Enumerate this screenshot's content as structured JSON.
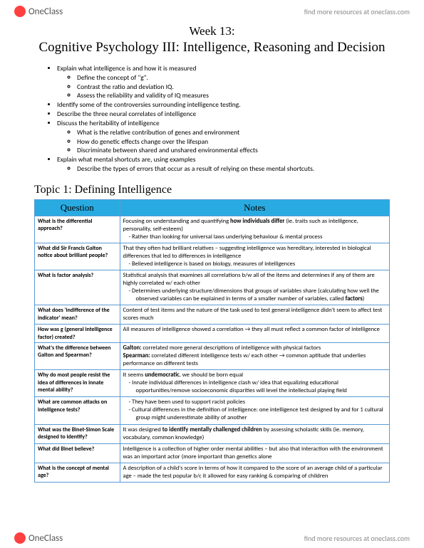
{
  "brand": {
    "name": "OneClass",
    "tagline": "find more resources at oneclass.com"
  },
  "title_line1": "Week 13:",
  "title_line2": "Cognitive Psychology III: Intelligence, Reasoning and Decision",
  "outline": [
    {
      "text": "Explain what intelligence is and how it is measured",
      "children": [
        "Define the concept of \"g\".",
        "Contrast the ratio and deviation IQ.",
        "Assess the reliability and validity of IQ measures"
      ]
    },
    {
      "text": "Identify some of the controversies surrounding intelligence testing."
    },
    {
      "text": "Describe the three neural correlates of intelligence"
    },
    {
      "text": "Discuss the heritability of intelligence",
      "children": [
        "What is the relative contribution of genes and environment",
        "How do genetic effects change over the lifespan",
        "Discriminate between shared and unshared environmental effects"
      ]
    },
    {
      "text": "Explain what mental shortcuts are, using examples",
      "children": [
        "Describe the types of errors that occur as a result of relying on these mental shortcuts."
      ]
    }
  ],
  "topic_heading": "Topic 1: Defining Intelligence",
  "table": {
    "headers": [
      "Question",
      "Notes"
    ],
    "header_bg": "#29abe2",
    "border_color": "#5b9bd5",
    "rows": [
      {
        "q": "What is the differential approach?",
        "n": [
          "Focusing on understanding and quantifying <b>how individuals differ</b> (ie. traits such as intelligence, personality, self-esteem)",
          {
            "sub": "Rather than looking for universal laws underlying behaviour & mental process"
          }
        ]
      },
      {
        "q": "What did Sir Francis Galton notice about brilliant people?",
        "n": [
          "That they often had brilliant relatives – suggesting intelligence was hereditary, interested in biological differences that led to differences in intelligence",
          {
            "sub": "Believed intelligence is based on biology, measures of intelligences"
          }
        ]
      },
      {
        "q": "What is factor analysis?",
        "n": [
          "Statistical analysis that examines all correlations b/w all of the items and determines if any of them are highly correlated w/ each other",
          {
            "sub": "Determines underlying structure/dimensions that groups of variables share (calculating how well the observed variables can be explained in terms of a smaller number of variables, called <b>factors</b>)"
          }
        ]
      },
      {
        "q": "What does 'indifference of the indicator' mean?",
        "n": [
          "Content of test items and the nature of the task used to test general intelligence didn't seem to affect test scores much"
        ]
      },
      {
        "q": "How was g (general intelligence factor) created?",
        "n": [
          "All measures of intelligence showed a correlation → they all must reflect a common factor of intelligence"
        ]
      },
      {
        "q": "What's the difference between Galton and Spearman?",
        "n": [
          "<b>Galton:</b> correlated more general descriptions of intelligence with physical factors",
          "<b>Spearman:</b> correlated different intelligence tests w/ each other → common aptitude that underlies performance on different tests"
        ]
      },
      {
        "q": "Why do most people resist the idea of differences in innate mental ability?",
        "n": [
          "It seems <b>undemocratic</b>, we should be born equal",
          {
            "sub": "Innate individual differences in intelligence clash w/ idea that equalizing educational opportunities/remove socioeconomic disparities will level the intellectual playing field"
          }
        ]
      },
      {
        "q": "What are common attacks on intelligence tests?",
        "n": [
          {
            "sub": "They have been used to support racist policies"
          },
          {
            "sub": "Cultural differences in the definition of intelligence: one intelligence test designed by and for 1 cultural group might underestimate ability of another"
          }
        ]
      },
      {
        "q": "What was the Binet-Simon Scale designed to identify?",
        "n": [
          "It was designed <b>to identify mentally challenged children</b> by assessing scholastic skills (ie. memory, vocabulary, common knowledge)"
        ]
      },
      {
        "q": "What did Binet believe?",
        "n": [
          "Intelligence is a collection of higher order mental abilities – but also that interaction with the environment was an important actor (more important than genetics alone"
        ]
      },
      {
        "q": "What is the concept of mental age?",
        "n": [
          "A description of a child's score in terms of how it compared to the score of an average child of a particular age – made the test popular b/c it allowed for easy ranking & comparing of children"
        ]
      }
    ]
  }
}
